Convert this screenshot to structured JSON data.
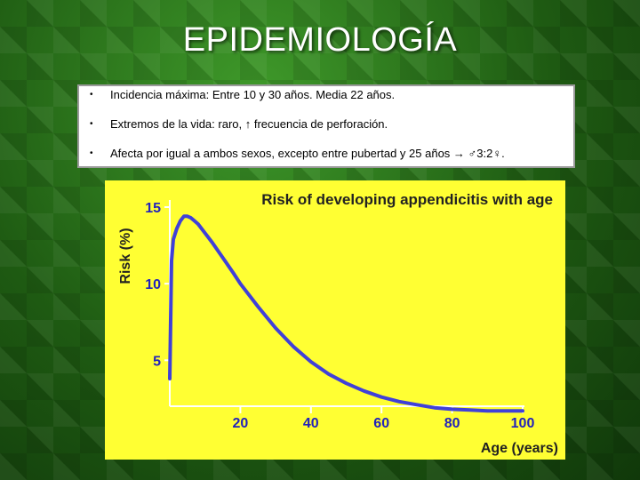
{
  "slide": {
    "title": "EPIDEMIOLOGÍA",
    "bullets": [
      {
        "marker": "•",
        "text": "Incidencia máxima: Entre 10 y 30 años. Media 22 años."
      },
      {
        "marker": "•",
        "text": "Extremos de la vida: raro, ↑ frecuencia de perforación."
      },
      {
        "marker": "•",
        "text": "Afecta por igual a ambos sexos, excepto entre pubertad y 25 años → ♂3:2♀."
      }
    ]
  },
  "colors": {
    "chart_background": "#ffff33",
    "curve": "#4040d8",
    "axis": "#ffffff",
    "tick_text": "#2222bb",
    "title_text": "#222222"
  },
  "chart_data": {
    "type": "line",
    "title": "Risk of developing appendicitis with age",
    "xlabel": "Age (years)",
    "ylabel": "Risk (%)",
    "xlim": [
      0,
      100
    ],
    "ylim": [
      2,
      15
    ],
    "xticks": [
      20,
      40,
      60,
      80,
      100
    ],
    "yticks": [
      5,
      10,
      15
    ],
    "grid": false,
    "series": [
      {
        "x": [
          0,
          0.5,
          1,
          2,
          3,
          4,
          5,
          6,
          7,
          8,
          10,
          12,
          15,
          18,
          20,
          25,
          30,
          35,
          40,
          45,
          50,
          55,
          60,
          65,
          70,
          75,
          80,
          85,
          90,
          95,
          100
        ],
        "y": [
          3.8,
          11.5,
          12.9,
          13.6,
          14.1,
          14.4,
          14.4,
          14.3,
          14.1,
          13.9,
          13.3,
          12.7,
          11.7,
          10.7,
          10.0,
          8.5,
          7.1,
          5.9,
          4.9,
          4.1,
          3.5,
          3.0,
          2.6,
          2.3,
          2.1,
          1.9,
          1.8,
          1.75,
          1.7,
          1.7,
          1.7
        ]
      }
    ]
  }
}
